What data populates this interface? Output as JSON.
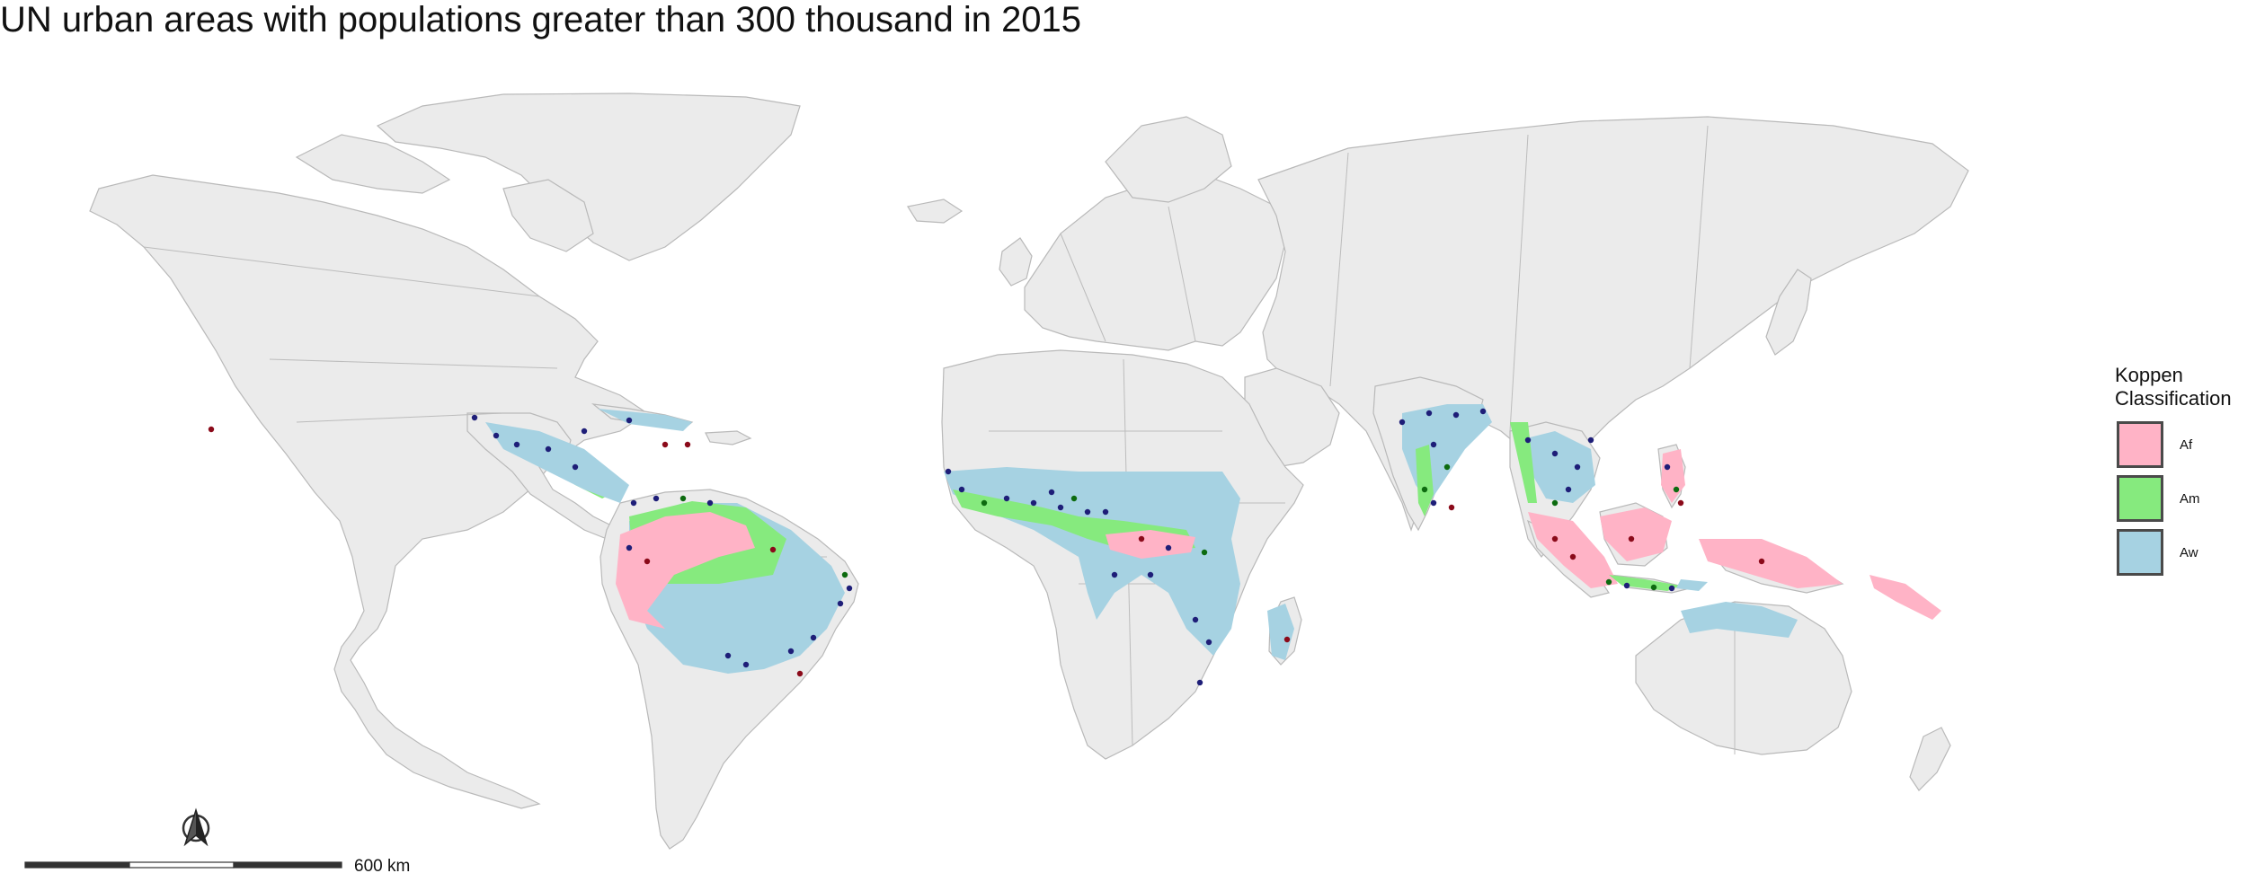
{
  "title": "UN urban areas with populations greater than 300 thousand in 2015",
  "legend": {
    "title_line1": "Koppen",
    "title_line2": "Classification",
    "items": [
      {
        "label": "Af",
        "color": "#ffb3c6"
      },
      {
        "label": "Am",
        "color": "#86ea7e"
      },
      {
        "label": "Aw",
        "color": "#a6d2e2"
      }
    ]
  },
  "scale_bar": {
    "label": "600 km"
  },
  "north_arrow": {
    "icon": "north-arrow-icon"
  },
  "colors": {
    "land": "#ebebeb",
    "country_border": "#bcbcbc",
    "city_aw": "#1e1e78",
    "city_am": "#0d6b10",
    "city_af": "#8b0a1a"
  }
}
